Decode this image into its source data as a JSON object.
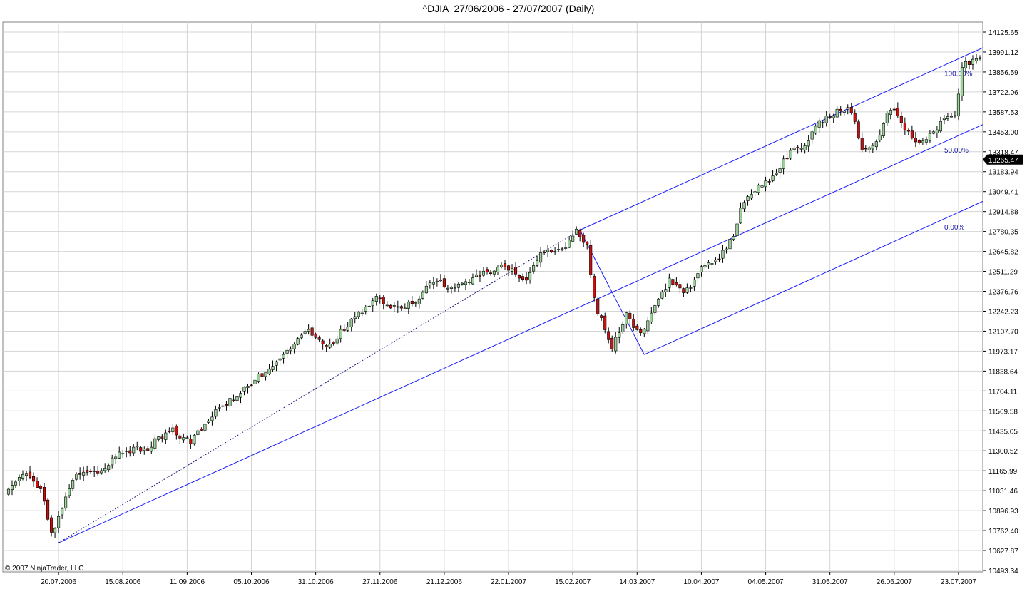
{
  "chart_data": {
    "type": "candlestick",
    "title": "^DJIA  27/06/2006 - 27/07/2007 (Daily)",
    "copyright": "© 2007 NinjaTrader, LLC",
    "ylim": [
      10493.34,
      14125.65
    ],
    "y_ticks": [
      "14125.65",
      "13991.12",
      "13856.59",
      "13722.06",
      "13587.53",
      "13453.00",
      "13318.47",
      "13183.94",
      "13049.41",
      "12914.88",
      "12780.35",
      "12645.82",
      "12511.29",
      "12376.76",
      "12242.23",
      "12107.70",
      "11973.17",
      "11838.64",
      "11704.11",
      "11569.58",
      "11435.05",
      "11300.52",
      "11165.99",
      "11031.46",
      "10896.93",
      "10762.40",
      "10627.87",
      "10493.34"
    ],
    "x_ticks": [
      "20.07.2006",
      "15.08.2006",
      "11.09.2006",
      "05.10.2006",
      "31.10.2006",
      "27.11.2006",
      "21.12.2006",
      "22.01.2007",
      "15.02.2007",
      "14.03.2007",
      "10.04.2007",
      "04.05.2007",
      "31.05.2007",
      "26.06.2007",
      "23.07.2007"
    ],
    "x_tick_index": [
      14,
      32,
      50,
      68,
      86,
      104,
      122,
      140,
      158,
      176,
      194,
      212,
      230,
      248,
      266
    ],
    "last_price": "13265.47",
    "colors": {
      "up": "#9bd39b",
      "down": "#cc1010",
      "wick": "#000000",
      "drawing": "#1a1aff",
      "grid": "#d4d4d4"
    },
    "fib_labels": [
      "100.00%",
      "50.00%",
      "0.00%"
    ],
    "andrews_pitchfork": {
      "pivot1": {
        "index": 14,
        "price": 10680
      },
      "pivot2": {
        "index": 160,
        "price": 12790
      },
      "pivot3": {
        "index": 178,
        "price": 11950
      },
      "extend_to_index": 272
    },
    "trend_line": {
      "from": {
        "index": 14,
        "price": 10680
      },
      "to": {
        "index": 160,
        "price": 12790
      }
    },
    "candles": []
  }
}
